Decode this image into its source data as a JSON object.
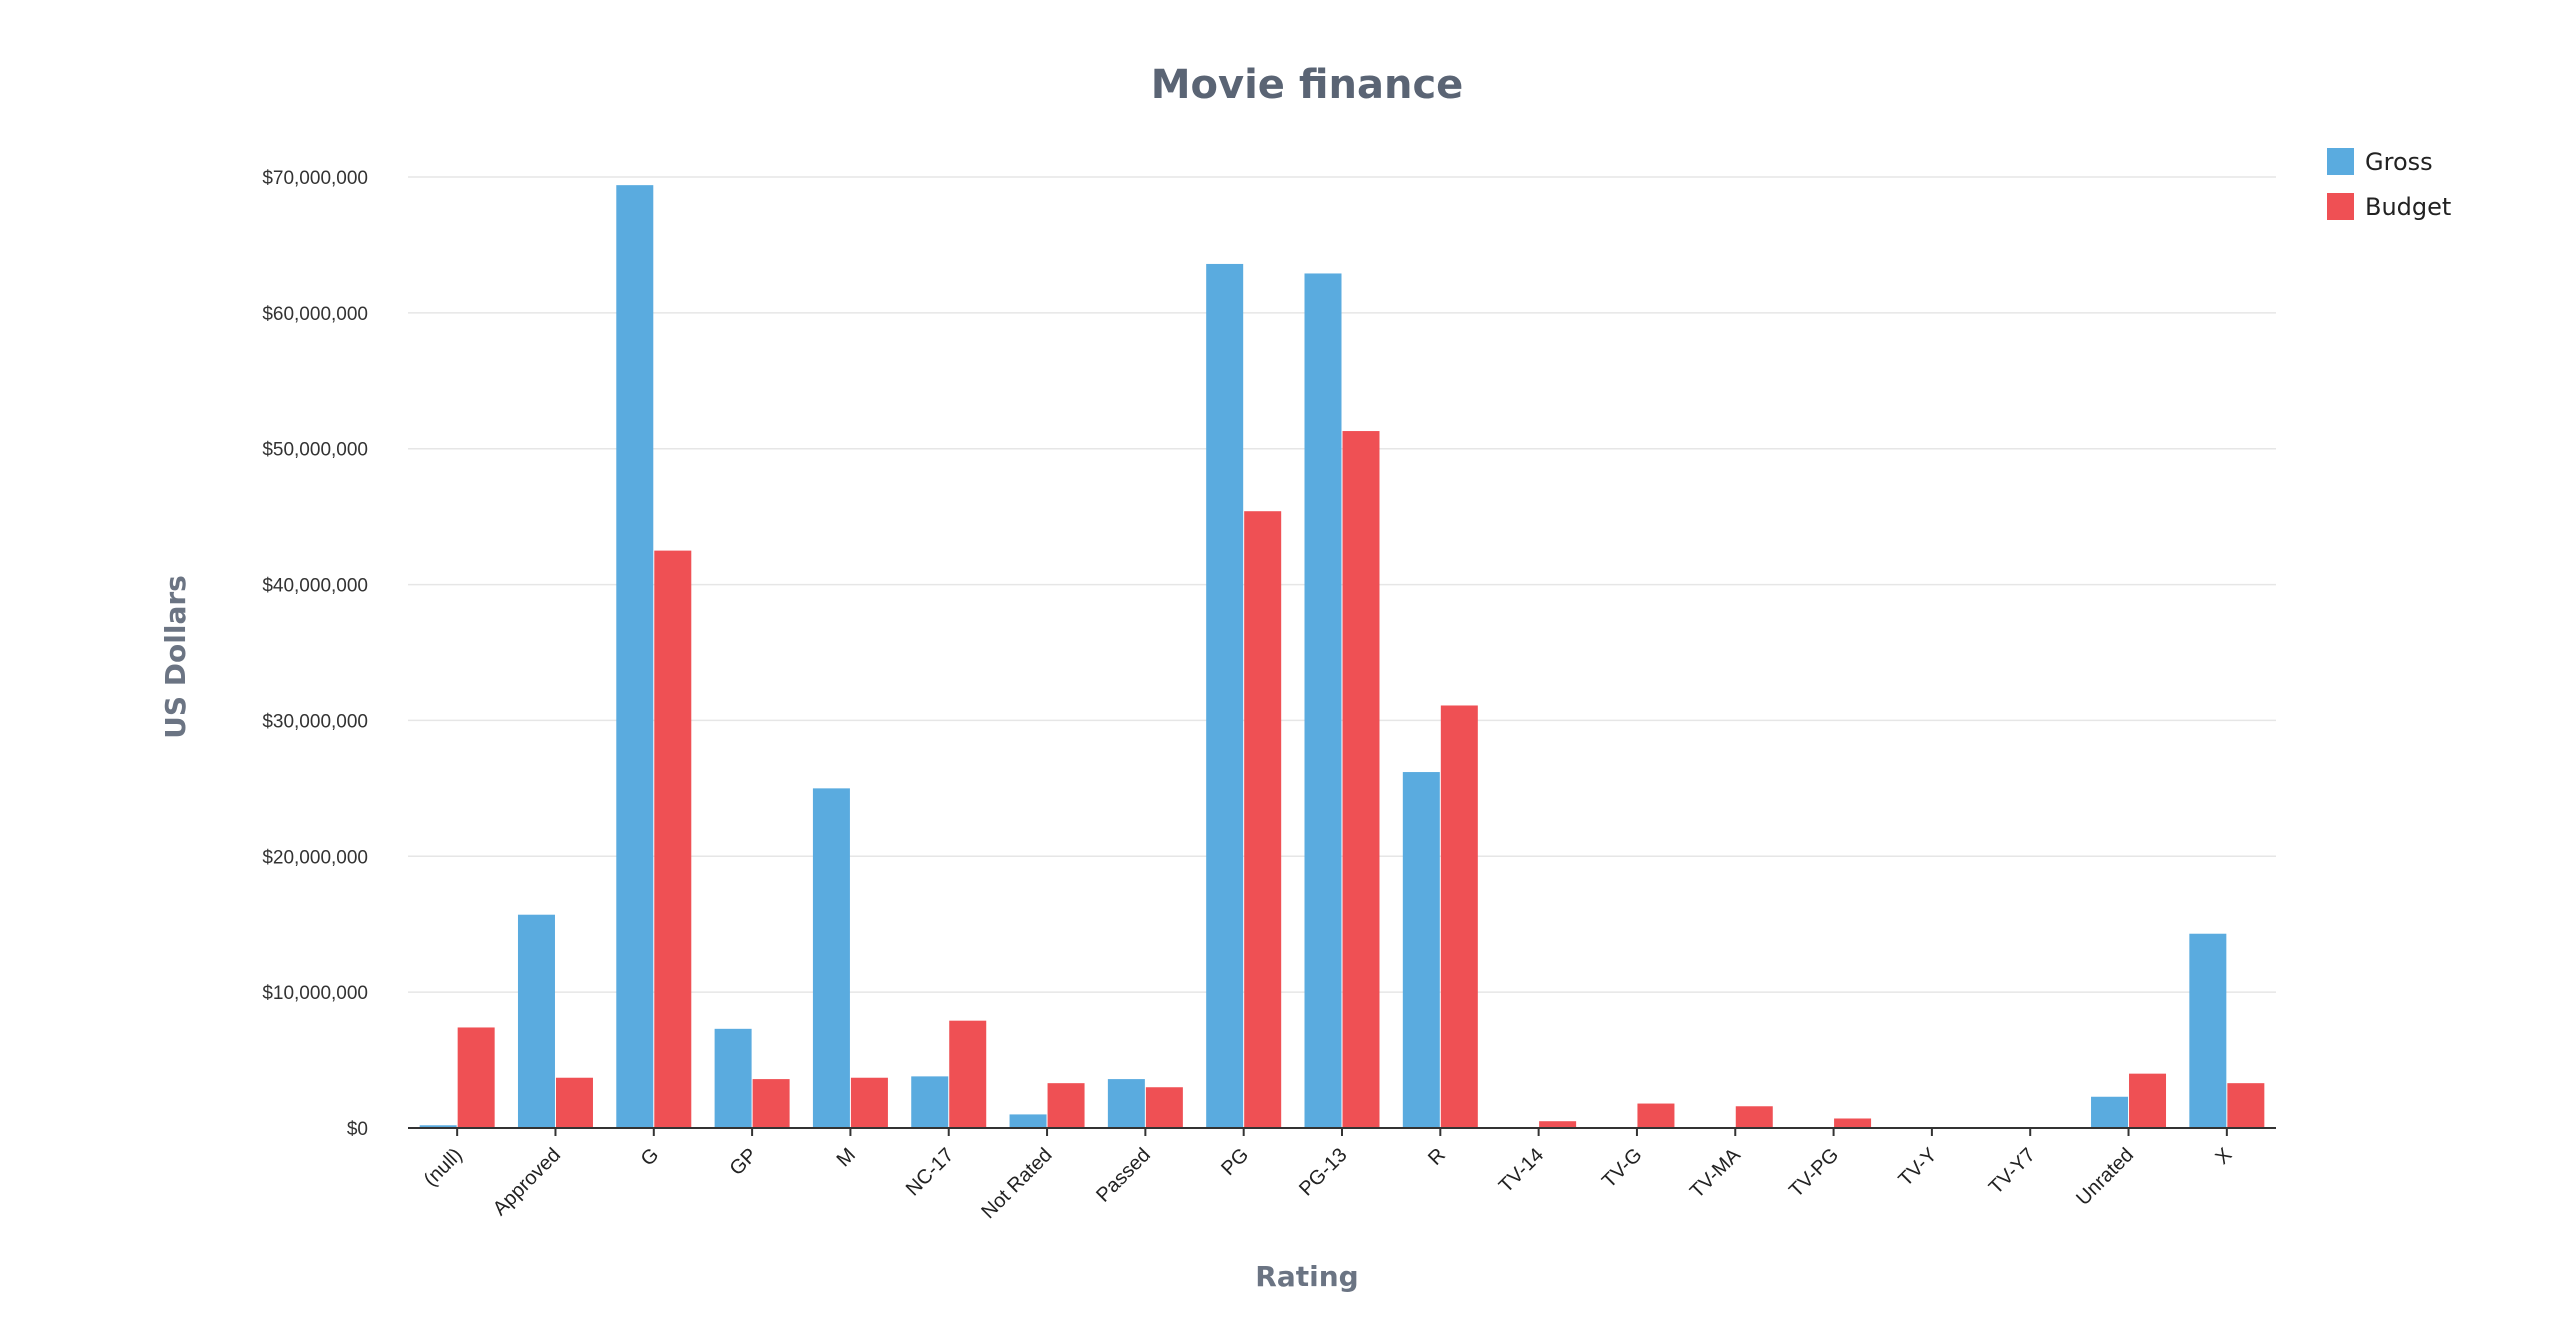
{
  "chart_data": {
    "type": "bar",
    "title": "Movie finance",
    "xlabel": "Rating",
    "ylabel": "US Dollars",
    "ylim": [
      0,
      70000000
    ],
    "yticks": [
      0,
      10000000,
      20000000,
      30000000,
      40000000,
      50000000,
      60000000,
      70000000
    ],
    "ytick_labels": [
      "$0",
      "$10,000,000",
      "$20,000,000",
      "$30,000,000",
      "$40,000,000",
      "$50,000,000",
      "$60,000,000",
      "$70,000,000"
    ],
    "grid": true,
    "legend_position": "top-right",
    "categories": [
      "(null)",
      "Approved",
      "G",
      "GP",
      "M",
      "NC-17",
      "Not Rated",
      "Passed",
      "PG",
      "PG-13",
      "R",
      "TV-14",
      "TV-G",
      "TV-MA",
      "TV-PG",
      "TV-Y",
      "TV-Y7",
      "Unrated",
      "X"
    ],
    "series": [
      {
        "name": "Gross",
        "color": "#5aabdf",
        "values": [
          200000,
          15700000,
          69400000,
          7300000,
          25000000,
          3800000,
          1000000,
          3600000,
          63600000,
          62900000,
          26200000,
          0,
          0,
          0,
          0,
          0,
          0,
          2300000,
          14300000
        ]
      },
      {
        "name": "Budget",
        "color": "#ef5054",
        "values": [
          7400000,
          3700000,
          42500000,
          3600000,
          3700000,
          7900000,
          3300000,
          3000000,
          45400000,
          51300000,
          31100000,
          500000,
          1800000,
          1600000,
          700000,
          0,
          0,
          4000000,
          3300000
        ]
      }
    ]
  }
}
